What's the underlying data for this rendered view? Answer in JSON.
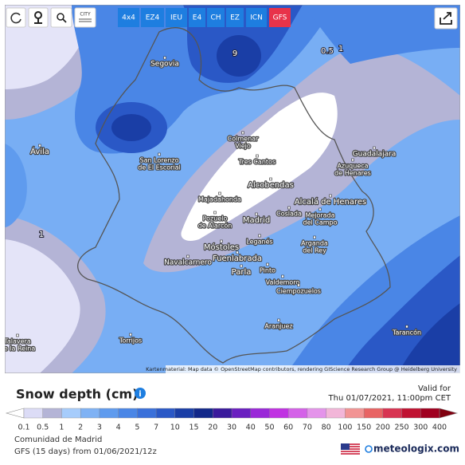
{
  "toolbar": {
    "icon_text": "CITY",
    "models": [
      {
        "label": "4x4",
        "active": false
      },
      {
        "label": "EZ4",
        "active": false
      },
      {
        "label": "IEU",
        "active": false
      },
      {
        "label": "E4",
        "active": false
      },
      {
        "label": "CH",
        "active": false
      },
      {
        "label": "EZ",
        "active": false
      },
      {
        "label": "ICN",
        "active": false
      },
      {
        "label": "GFS",
        "active": true
      }
    ]
  },
  "map": {
    "contour_labels": [
      "9",
      "0.5",
      "1",
      "1"
    ],
    "places": [
      {
        "lines": [
          "Segovia"
        ]
      },
      {
        "lines": [
          "Ávila"
        ]
      },
      {
        "lines": [
          "San Lorenzo",
          "de El Escorial"
        ]
      },
      {
        "lines": [
          "Colmenar",
          "Viejo"
        ]
      },
      {
        "lines": [
          "Tres Cantos"
        ]
      },
      {
        "lines": [
          "Alcobendas"
        ]
      },
      {
        "lines": [
          "Majadahonda"
        ]
      },
      {
        "lines": [
          "Pozuelo",
          "de Alarcón"
        ]
      },
      {
        "lines": [
          "Madrid"
        ]
      },
      {
        "lines": [
          "Coslada"
        ]
      },
      {
        "lines": [
          "Mejorada",
          "del Campo"
        ]
      },
      {
        "lines": [
          "Alcalá de Henares"
        ]
      },
      {
        "lines": [
          "Guadalajara"
        ]
      },
      {
        "lines": [
          "Azuqueca",
          "de Henares"
        ]
      },
      {
        "lines": [
          "Móstoles"
        ]
      },
      {
        "lines": [
          "Leganés"
        ]
      },
      {
        "lines": [
          "Fuenlabrada"
        ]
      },
      {
        "lines": [
          "Arganda",
          "del Rey"
        ]
      },
      {
        "lines": [
          "Navalcarnero"
        ]
      },
      {
        "lines": [
          "Parla"
        ]
      },
      {
        "lines": [
          "Pinto"
        ]
      },
      {
        "lines": [
          "Valdemoro"
        ]
      },
      {
        "lines": [
          "Ciempozuelos"
        ]
      },
      {
        "lines": [
          "Aranjuez"
        ]
      },
      {
        "lines": [
          "Tarancón"
        ]
      },
      {
        "lines": [
          "Torrijos"
        ]
      },
      {
        "lines": [
          "Talavera",
          "de la Reina"
        ]
      }
    ],
    "attribution": "Kartenmaterial: Map data © OpenStreetMap contributors, rendering GIScience Research Group @ Heidelberg University"
  },
  "legend": {
    "title": "Snow depth (cm)",
    "valid_label": "Valid for",
    "valid_time": "Thu 01/07/2021, 11:00pm CET",
    "scale": [
      0.1,
      0.5,
      1,
      2,
      3,
      4,
      5,
      7,
      10,
      15,
      20,
      30,
      40,
      50,
      60,
      70,
      80,
      100,
      150,
      200,
      250,
      300,
      400
    ],
    "colors": [
      "#dcdcf6",
      "#b4b4d6",
      "#a6ccfb",
      "#7fb2f4",
      "#5f9bee",
      "#4a86e6",
      "#3a70da",
      "#2a58c6",
      "#1a3ea6",
      "#12288a",
      "#3a1a9c",
      "#6a1fc0",
      "#9a28d8",
      "#c032e2",
      "#d462e8",
      "#e494ea",
      "#f2b6d8",
      "#f29494",
      "#e86464",
      "#d83452",
      "#c01232",
      "#a00020"
    ],
    "region": "Comunidad de Madrid",
    "run": "GFS (15 days) from 01/06/2021/12z",
    "brand": "meteologix.com"
  }
}
